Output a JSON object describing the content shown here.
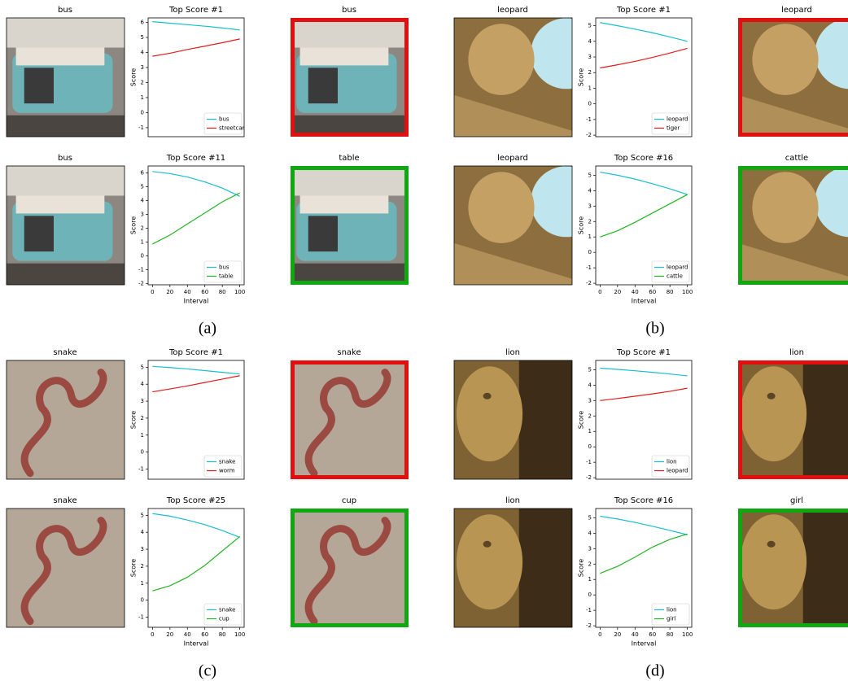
{
  "panels": [
    {
      "caption": "(a)",
      "rows": [
        {
          "image_title": "bus",
          "result_title": "bus",
          "border_color": "#e01010"
        },
        {
          "image_title": "bus",
          "result_title": "table",
          "border_color": "#10a810"
        }
      ]
    },
    {
      "caption": "(b)",
      "rows": [
        {
          "image_title": "leopard",
          "result_title": "leopard",
          "border_color": "#e01010"
        },
        {
          "image_title": "leopard",
          "result_title": "cattle",
          "border_color": "#10a810"
        }
      ]
    },
    {
      "caption": "(c)",
      "rows": [
        {
          "image_title": "snake",
          "result_title": "snake",
          "border_color": "#e01010"
        },
        {
          "image_title": "snake",
          "result_title": "cup",
          "border_color": "#10a810"
        }
      ]
    },
    {
      "caption": "(d)",
      "rows": [
        {
          "image_title": "lion",
          "result_title": "lion",
          "border_color": "#e01010"
        },
        {
          "image_title": "lion",
          "result_title": "girl",
          "border_color": "#10a810"
        }
      ]
    }
  ],
  "chart_data": [
    {
      "type": "line",
      "title": "Top Score #1",
      "y_label": "Score",
      "x": [
        0,
        20,
        40,
        60,
        80,
        100
      ],
      "series": [
        {
          "name": "bus",
          "color": "#17becf",
          "values": [
            6.05,
            5.95,
            5.85,
            5.75,
            5.63,
            5.5
          ]
        },
        {
          "name": "streetcar",
          "color": "#e41a1c",
          "values": [
            3.75,
            3.95,
            4.2,
            4.42,
            4.65,
            4.9
          ]
        }
      ],
      "xlim": [
        -5,
        105
      ],
      "ylim": [
        -1.6,
        6.3
      ],
      "yticks": [
        -1,
        0,
        1,
        2,
        3,
        4,
        5,
        6
      ]
    },
    {
      "type": "line",
      "title": "Top Score #11",
      "y_label": "Score",
      "x_label": "Interval",
      "x": [
        0,
        20,
        40,
        60,
        80,
        100
      ],
      "series": [
        {
          "name": "bus",
          "color": "#17becf",
          "values": [
            6.1,
            5.95,
            5.7,
            5.35,
            4.9,
            4.3
          ]
        },
        {
          "name": "table",
          "color": "#22b422",
          "values": [
            0.85,
            1.5,
            2.3,
            3.1,
            3.9,
            4.55
          ]
        }
      ],
      "xlim": [
        -5,
        105
      ],
      "ylim": [
        -2.1,
        6.5
      ],
      "xticks": [
        0,
        20,
        40,
        60,
        80,
        100
      ],
      "yticks": [
        -2,
        -1,
        0,
        1,
        2,
        3,
        4,
        5,
        6
      ]
    },
    {
      "type": "line",
      "title": "Top Score #1",
      "y_label": "Score",
      "x": [
        0,
        20,
        40,
        60,
        80,
        100
      ],
      "series": [
        {
          "name": "leopard",
          "color": "#17becf",
          "values": [
            5.2,
            5.0,
            4.78,
            4.55,
            4.28,
            4.0
          ]
        },
        {
          "name": "tiger",
          "color": "#e41a1c",
          "values": [
            2.3,
            2.5,
            2.72,
            2.97,
            3.25,
            3.55
          ]
        }
      ],
      "xlim": [
        -5,
        105
      ],
      "ylim": [
        -2.1,
        5.5
      ],
      "yticks": [
        -2,
        -1,
        0,
        1,
        2,
        3,
        4,
        5
      ]
    },
    {
      "type": "line",
      "title": "Top Score #16",
      "y_label": "Score",
      "x_label": "Interval",
      "x": [
        0,
        20,
        40,
        60,
        80,
        100
      ],
      "series": [
        {
          "name": "leopard",
          "color": "#17becf",
          "values": [
            5.2,
            5.0,
            4.75,
            4.45,
            4.12,
            3.75
          ]
        },
        {
          "name": "cattle",
          "color": "#22b422",
          "values": [
            1.0,
            1.4,
            1.95,
            2.55,
            3.15,
            3.75
          ]
        }
      ],
      "xlim": [
        -5,
        105
      ],
      "ylim": [
        -2.1,
        5.6
      ],
      "xticks": [
        0,
        20,
        40,
        60,
        80,
        100
      ],
      "yticks": [
        -2,
        -1,
        0,
        1,
        2,
        3,
        4,
        5
      ]
    },
    {
      "type": "line",
      "title": "Top Score #1",
      "y_label": "Score",
      "x": [
        0,
        20,
        40,
        60,
        80,
        100
      ],
      "series": [
        {
          "name": "snake",
          "color": "#17becf",
          "values": [
            5.05,
            4.98,
            4.9,
            4.8,
            4.7,
            4.6
          ]
        },
        {
          "name": "worm",
          "color": "#e41a1c",
          "values": [
            3.55,
            3.72,
            3.9,
            4.1,
            4.3,
            4.5
          ]
        }
      ],
      "xlim": [
        -5,
        105
      ],
      "ylim": [
        -1.6,
        5.4
      ],
      "yticks": [
        -1,
        0,
        1,
        2,
        3,
        4,
        5
      ]
    },
    {
      "type": "line",
      "title": "Top Score #25",
      "y_label": "Score",
      "x_label": "Interval",
      "x": [
        0,
        20,
        40,
        60,
        80,
        100
      ],
      "series": [
        {
          "name": "snake",
          "color": "#17becf",
          "values": [
            5.1,
            4.95,
            4.72,
            4.45,
            4.1,
            3.7
          ]
        },
        {
          "name": "cup",
          "color": "#22b422",
          "values": [
            0.55,
            0.85,
            1.35,
            2.05,
            2.9,
            3.75
          ]
        }
      ],
      "xlim": [
        -5,
        105
      ],
      "ylim": [
        -1.6,
        5.4
      ],
      "xticks": [
        0,
        20,
        40,
        60,
        80,
        100
      ],
      "yticks": [
        -1,
        0,
        1,
        2,
        3,
        4,
        5
      ]
    },
    {
      "type": "line",
      "title": "Top Score #1",
      "y_label": "Score",
      "x": [
        0,
        20,
        40,
        60,
        80,
        100
      ],
      "series": [
        {
          "name": "lion",
          "color": "#17becf",
          "values": [
            5.1,
            5.02,
            4.93,
            4.83,
            4.72,
            4.6
          ]
        },
        {
          "name": "leopard",
          "color": "#e41a1c",
          "values": [
            3.0,
            3.13,
            3.28,
            3.43,
            3.6,
            3.8
          ]
        }
      ],
      "xlim": [
        -5,
        105
      ],
      "ylim": [
        -2.1,
        5.6
      ],
      "yticks": [
        -2,
        -1,
        0,
        1,
        2,
        3,
        4,
        5
      ]
    },
    {
      "type": "line",
      "title": "Top Score #16",
      "y_label": "Score",
      "x_label": "Interval",
      "x": [
        0,
        20,
        40,
        60,
        80,
        100
      ],
      "series": [
        {
          "name": "lion",
          "color": "#17becf",
          "values": [
            5.1,
            4.92,
            4.7,
            4.45,
            4.18,
            3.9
          ]
        },
        {
          "name": "girl",
          "color": "#22b422",
          "values": [
            1.4,
            1.85,
            2.45,
            3.1,
            3.6,
            3.95
          ]
        }
      ],
      "xlim": [
        -5,
        105
      ],
      "ylim": [
        -2.1,
        5.6
      ],
      "xticks": [
        0,
        20,
        40,
        60,
        80,
        100
      ],
      "yticks": [
        -2,
        -1,
        0,
        1,
        2,
        3,
        4,
        5
      ]
    }
  ]
}
